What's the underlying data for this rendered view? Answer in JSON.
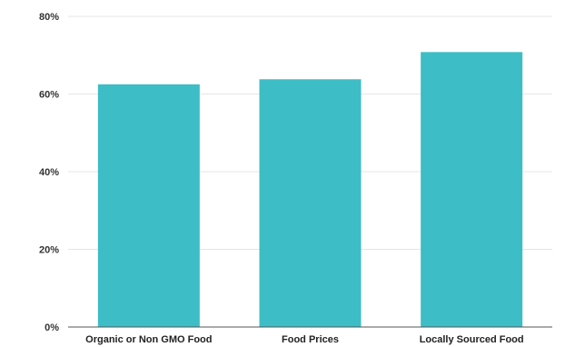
{
  "chart_data": {
    "type": "bar",
    "categories": [
      "Organic or Non GMO Food",
      "Food Prices",
      "Locally Sourced Food"
    ],
    "values": [
      62.5,
      63.8,
      70.8
    ],
    "title": "",
    "xlabel": "",
    "ylabel": "",
    "ylim": [
      0,
      80
    ],
    "yticks": [
      "0%",
      "20%",
      "40%",
      "60%",
      "80%"
    ],
    "grid": true,
    "legend": "none",
    "bar_color": "#3dbdc5"
  }
}
